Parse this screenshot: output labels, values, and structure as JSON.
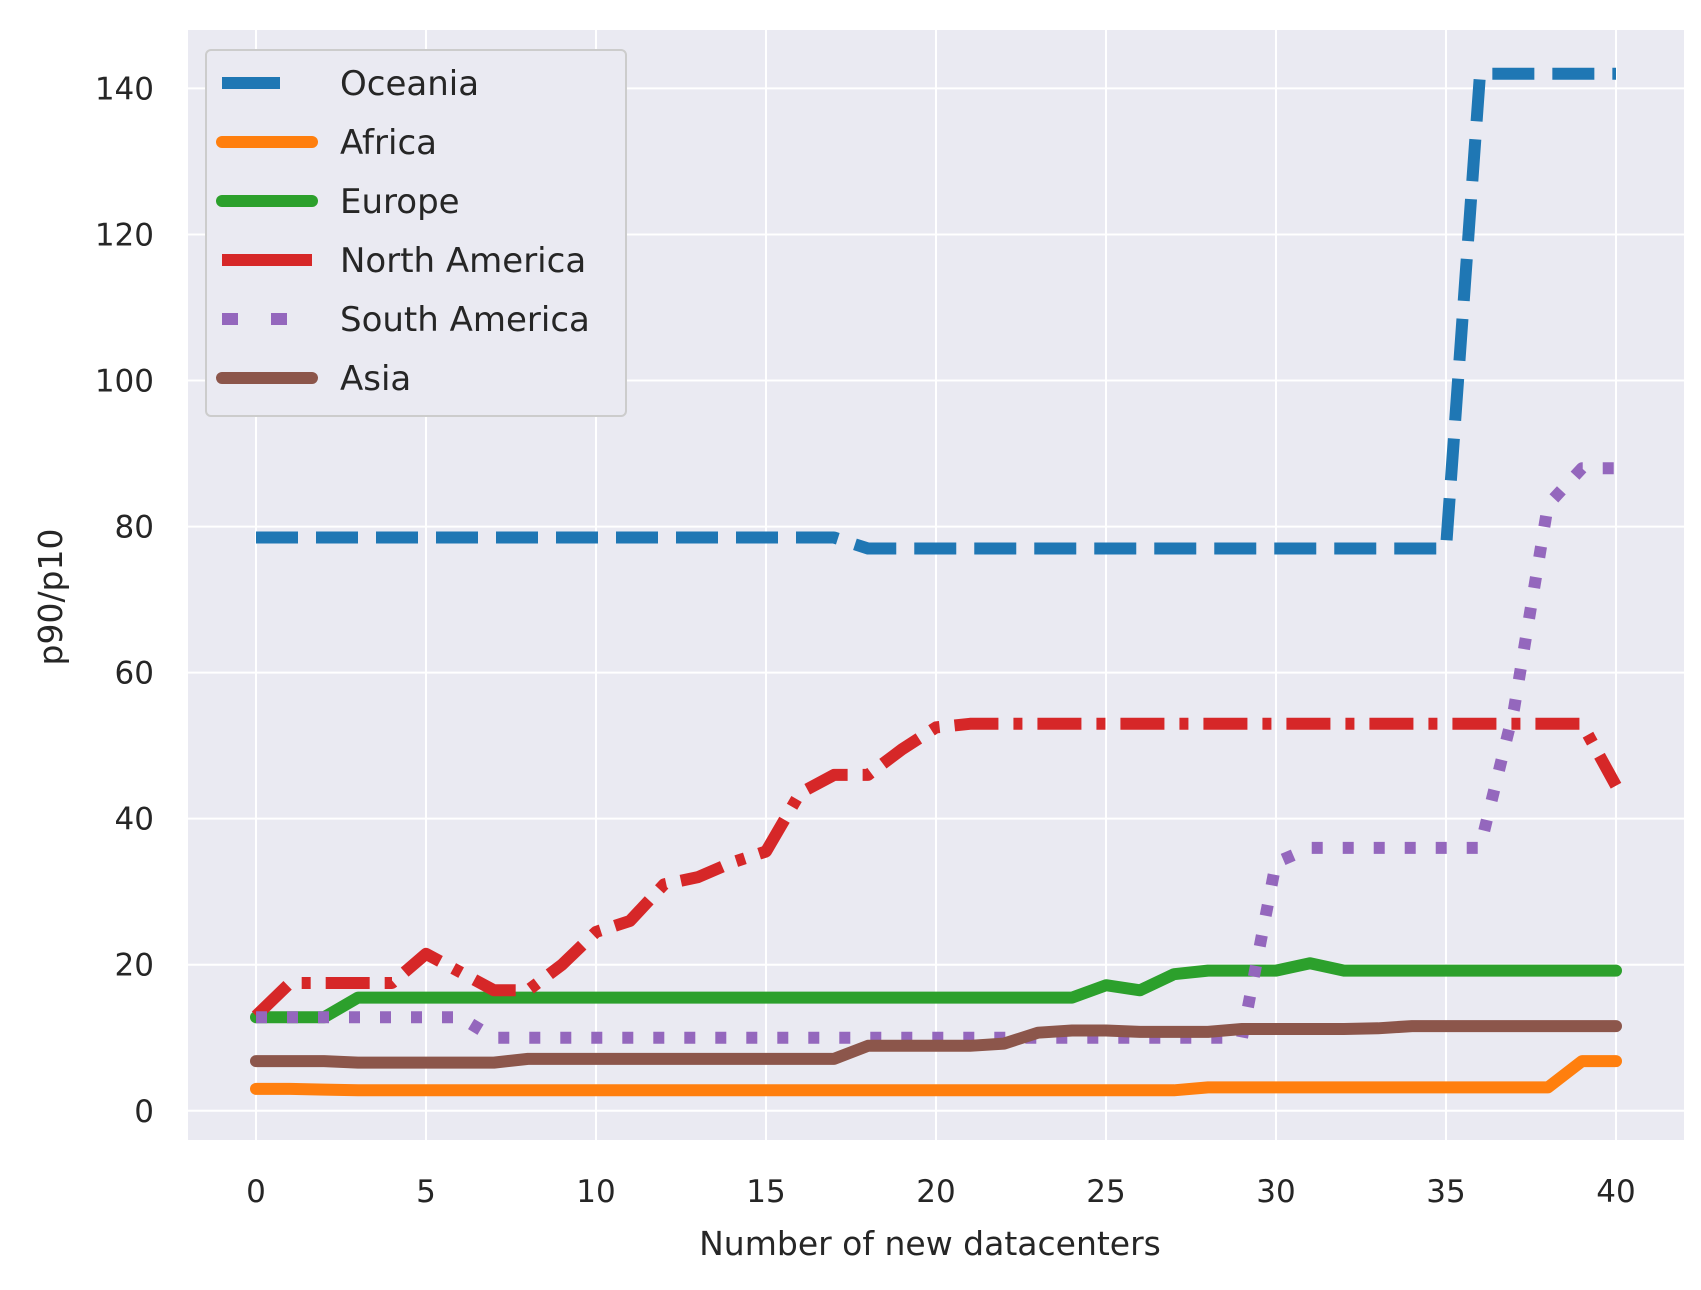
{
  "chart_data": {
    "type": "line",
    "xlabel": "Number of new datacenters",
    "ylabel": "p90/p10",
    "xlim": [
      -2,
      42
    ],
    "ylim": [
      -4,
      148
    ],
    "xticks": [
      0,
      5,
      10,
      15,
      20,
      25,
      30,
      35,
      40
    ],
    "yticks": [
      0,
      20,
      40,
      60,
      80,
      100,
      120,
      140
    ],
    "grid": true,
    "legend_position": "top-left",
    "x": [
      0,
      1,
      2,
      3,
      4,
      5,
      6,
      7,
      8,
      9,
      10,
      11,
      12,
      13,
      14,
      15,
      16,
      17,
      18,
      19,
      20,
      21,
      22,
      23,
      24,
      25,
      26,
      27,
      28,
      29,
      30,
      31,
      32,
      33,
      34,
      35,
      36,
      37,
      38,
      39,
      40
    ],
    "series": [
      {
        "name": "Oceania",
        "color": "#1f77b4",
        "style": "dashed",
        "values": [
          78.5,
          78.5,
          78.5,
          78.5,
          78.5,
          78.5,
          78.5,
          78.5,
          78.5,
          78.5,
          78.5,
          78.5,
          78.5,
          78.5,
          78.5,
          78.5,
          78.5,
          78.5,
          77,
          77,
          77,
          77,
          77,
          77,
          77,
          77,
          77,
          77,
          77,
          77,
          77,
          77,
          77,
          77,
          77,
          77,
          142,
          142,
          142,
          142,
          142
        ]
      },
      {
        "name": "Africa",
        "color": "#ff7f0e",
        "style": "solid",
        "values": [
          3,
          3,
          2.9,
          2.8,
          2.8,
          2.8,
          2.8,
          2.8,
          2.8,
          2.8,
          2.8,
          2.8,
          2.8,
          2.8,
          2.8,
          2.8,
          2.8,
          2.8,
          2.8,
          2.8,
          2.8,
          2.8,
          2.8,
          2.8,
          2.8,
          2.8,
          2.8,
          2.8,
          3.2,
          3.2,
          3.2,
          3.2,
          3.2,
          3.2,
          3.2,
          3.2,
          3.2,
          3.2,
          3.2,
          6.8,
          6.8
        ]
      },
      {
        "name": "Europe",
        "color": "#2ca02c",
        "style": "solid",
        "values": [
          12.8,
          12.8,
          12.8,
          15.5,
          15.5,
          15.5,
          15.5,
          15.5,
          15.5,
          15.5,
          15.5,
          15.5,
          15.5,
          15.5,
          15.5,
          15.5,
          15.5,
          15.5,
          15.5,
          15.5,
          15.5,
          15.5,
          15.5,
          15.5,
          15.5,
          17.2,
          16.5,
          18.7,
          19.2,
          19.2,
          19.2,
          20.2,
          19.2,
          19.2,
          19.2,
          19.2,
          19.2,
          19.2,
          19.2,
          19.2,
          19.2
        ]
      },
      {
        "name": "North America",
        "color": "#d62728",
        "style": "dashdot",
        "values": [
          13,
          17.5,
          17.5,
          17.5,
          17.5,
          21.5,
          19,
          16.5,
          16.5,
          20,
          24.5,
          26,
          31,
          32,
          34,
          35.5,
          43.5,
          46,
          46,
          49.5,
          52.5,
          53,
          53,
          53,
          53,
          53,
          53,
          53,
          53,
          53,
          53,
          53,
          53,
          53,
          53,
          53,
          53,
          53,
          53,
          53,
          44.5
        ]
      },
      {
        "name": "South America",
        "color": "#9467bd",
        "style": "dotted",
        "values": [
          12.8,
          12.8,
          12.8,
          12.8,
          12.8,
          12.8,
          12.8,
          10,
          10,
          10,
          10,
          10,
          10,
          10,
          10,
          10,
          10,
          10,
          10,
          10,
          10,
          10,
          10,
          10,
          10,
          10,
          10,
          10,
          10,
          10,
          34,
          36,
          36,
          36,
          36,
          36,
          36,
          55,
          83,
          88,
          88
        ]
      },
      {
        "name": "Asia",
        "color": "#8c564b",
        "style": "solid",
        "values": [
          6.8,
          6.8,
          6.8,
          6.6,
          6.6,
          6.6,
          6.6,
          6.6,
          7.1,
          7.1,
          7.1,
          7.1,
          7.1,
          7.1,
          7.1,
          7.1,
          7.1,
          7.1,
          8.9,
          8.9,
          8.9,
          8.9,
          9.2,
          10.7,
          11,
          11,
          10.8,
          10.8,
          10.8,
          11.2,
          11.2,
          11.2,
          11.2,
          11.3,
          11.6,
          11.6,
          11.6,
          11.6,
          11.6,
          11.6,
          11.6
        ]
      }
    ]
  }
}
